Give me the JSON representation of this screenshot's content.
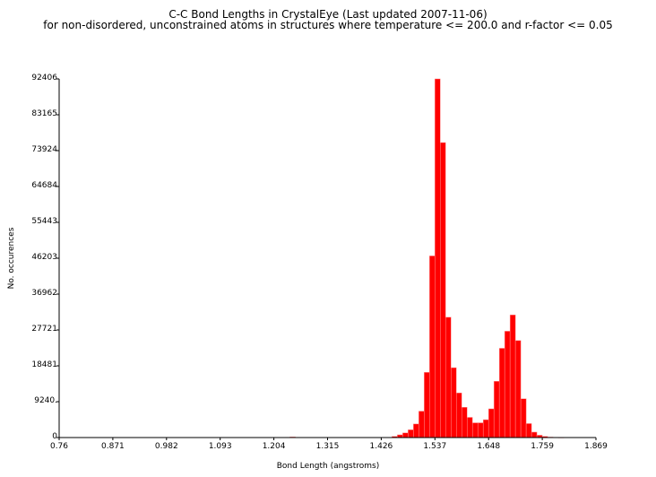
{
  "chart_data": {
    "type": "bar",
    "title": "C-C Bond Lengths in CrystalEye (Last updated 2007-11-06)",
    "subtitle": "for non-disordered, unconstrained atoms in structures where temperature <= 200.0 and r-factor <= 0.05",
    "xlabel": "Bond Length (angstroms)",
    "ylabel": "No. occurences",
    "xlim": [
      0.76,
      1.869
    ],
    "ylim": [
      0,
      92406
    ],
    "x_ticks": [
      "0.76",
      "0.871",
      "0.982",
      "1.093",
      "1.204",
      "1.315",
      "1.426",
      "1.537",
      "1.648",
      "1.759",
      "1.869"
    ],
    "y_ticks": [
      "0",
      "9240.",
      "18481",
      "27721",
      "36962",
      "46203",
      "55443",
      "64684",
      "73924",
      "83165",
      "92406"
    ],
    "bin_start": 0.76,
    "bin_width": 0.01109,
    "bar_color": "#ff0000",
    "bar_edge_color": "#ff9090",
    "values": [
      0,
      0,
      0,
      0,
      0,
      0,
      0,
      0,
      0,
      0,
      0,
      0,
      0,
      0,
      0,
      0,
      0,
      0,
      0,
      0,
      0,
      0,
      0,
      0,
      0,
      0,
      0,
      0,
      0,
      0,
      0,
      0,
      0,
      0,
      0,
      0,
      0,
      0,
      0,
      0,
      0,
      0,
      60,
      160,
      60,
      0,
      0,
      0,
      0,
      0,
      0,
      0,
      0,
      0,
      0,
      0,
      0,
      0,
      0,
      0,
      0,
      0,
      300,
      700,
      1200,
      2000,
      3500,
      6800,
      16800,
      46800,
      92406,
      76000,
      31000,
      18000,
      11500,
      7800,
      5200,
      3800,
      3800,
      4600,
      7400,
      14500,
      23000,
      27400,
      31600,
      25000,
      10000,
      3600,
      1400,
      600,
      300,
      120,
      60,
      30,
      0,
      0,
      0,
      0,
      0,
      0,
      0,
      0,
      0,
      0,
      0,
      0,
      0,
      0,
      0,
      0,
      0,
      0,
      0,
      0,
      0,
      0,
      0,
      0,
      0,
      0,
      0,
      0,
      0,
      0,
      0,
      0,
      0,
      0,
      0,
      0,
      0,
      0,
      0,
      0
    ]
  }
}
